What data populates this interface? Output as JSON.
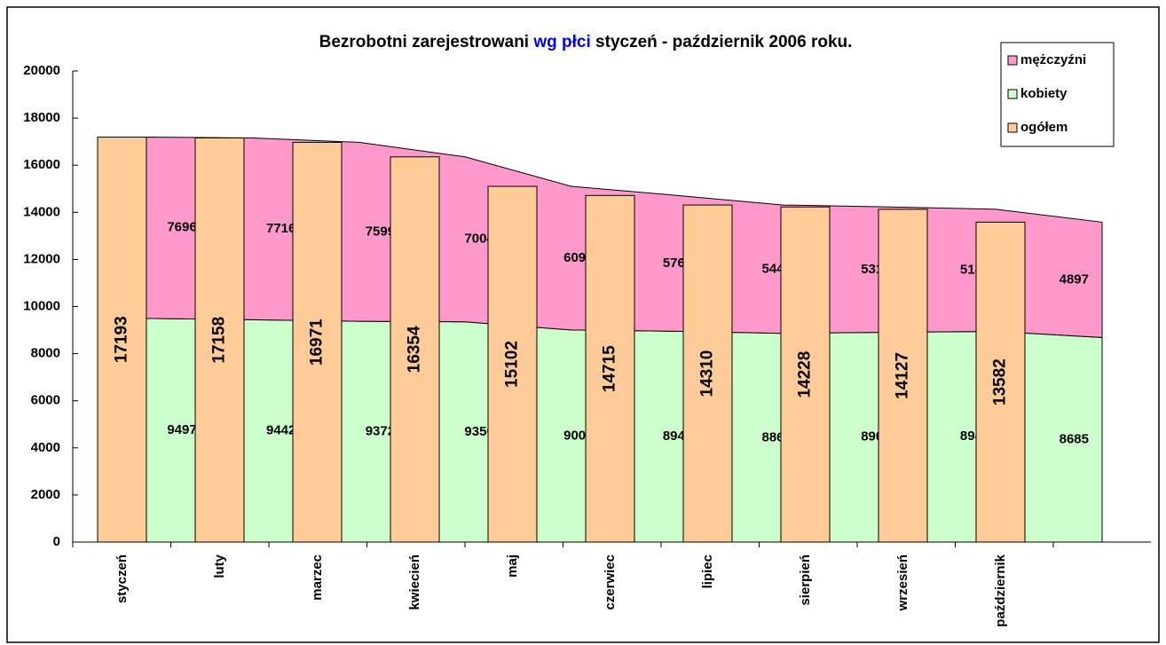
{
  "chart_data": {
    "type": "bar_area",
    "title_parts": [
      {
        "text": "Bezrobotni zarejestrowani ",
        "color": "#000000"
      },
      {
        "text": "wg płci",
        "color": "#0000ff"
      },
      {
        "text": " styczeń - październik 2006 roku.",
        "color": "#000000"
      }
    ],
    "categories": [
      "styczeń",
      "luty",
      "marzec",
      "kwiecień",
      "maj",
      "czerwiec",
      "lipiec",
      "sierpień",
      "wrzesień",
      "październik"
    ],
    "series": [
      {
        "name": "mężczyźni",
        "color": "#ff99cc",
        "kind": "area",
        "values": [
          7696,
          7716,
          7599,
          7004,
          6097,
          5766,
          5449,
          5319,
          5183,
          4897
        ]
      },
      {
        "name": "kobiety",
        "color": "#ccffcc",
        "kind": "area",
        "values": [
          9497,
          9442,
          9372,
          9350,
          9005,
          8949,
          8861,
          8909,
          8944,
          8685
        ]
      },
      {
        "name": "ogółem",
        "color": "#ffcc99",
        "kind": "bar",
        "values": [
          17193,
          17158,
          16971,
          16354,
          15102,
          14715,
          14310,
          14228,
          14127,
          13582
        ]
      }
    ],
    "ylim": [
      0,
      20000
    ],
    "yticks": [
      0,
      2000,
      4000,
      6000,
      8000,
      10000,
      12000,
      14000,
      16000,
      18000,
      20000
    ]
  }
}
